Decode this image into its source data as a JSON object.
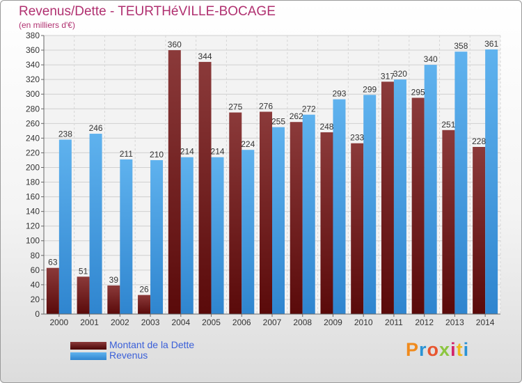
{
  "header": {
    "title": "Revenus/Dette - TEURTHéVILLE-BOCAGE",
    "subtitle": "(en milliers d'€)"
  },
  "legend": {
    "debt_label": "Montant de la Dette",
    "revenue_label": "Revenus"
  },
  "logo": {
    "text": "Proxiti"
  },
  "colors": {
    "debt_top": "#8b3a3a",
    "debt_bottom": "#5a0a0a",
    "revenue_top": "#5fb2ee",
    "revenue_bottom": "#2f85cf",
    "title": "#b03070",
    "legend_text": "#3a5fd8"
  },
  "chart_data": {
    "type": "bar",
    "title": "Revenus/Dette - TEURTHéVILLE-BOCAGE",
    "ylabel": "(en milliers d'€)",
    "xlabel": "",
    "categories": [
      "2000",
      "2001",
      "2002",
      "2003",
      "2004",
      "2005",
      "2006",
      "2007",
      "2008",
      "2009",
      "2010",
      "2011",
      "2012",
      "2013",
      "2014"
    ],
    "series": [
      {
        "name": "Montant de la Dette",
        "values": [
          63,
          51,
          39,
          26,
          360,
          344,
          275,
          276,
          262,
          248,
          233,
          317,
          295,
          251,
          228
        ]
      },
      {
        "name": "Revenus",
        "values": [
          238,
          246,
          211,
          210,
          214,
          214,
          224,
          255,
          272,
          293,
          299,
          320,
          340,
          358,
          361
        ]
      }
    ],
    "ylim": [
      0,
      380
    ],
    "yticks": [
      0,
      20,
      40,
      60,
      80,
      100,
      120,
      140,
      160,
      180,
      200,
      220,
      240,
      260,
      280,
      300,
      320,
      340,
      360,
      380
    ],
    "grid": true,
    "legend_position": "bottom-left"
  }
}
